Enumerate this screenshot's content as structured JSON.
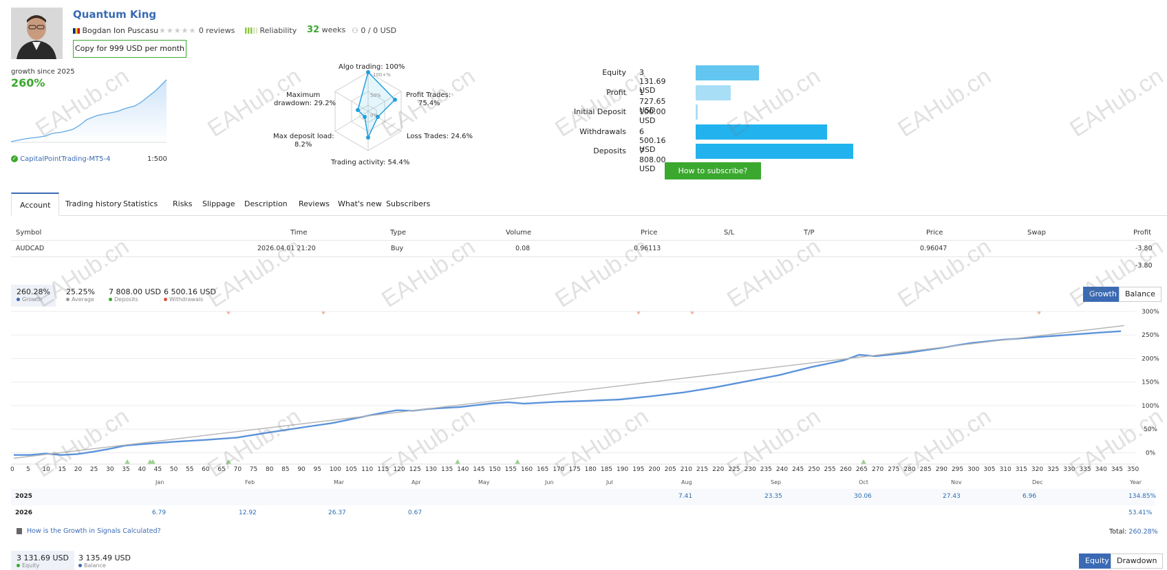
{
  "header": {
    "title": "Quantum King",
    "author": "Bogdan Ion Puscasu",
    "reviews": "0 reviews",
    "reliability": "Reliability",
    "weeks_num": "32",
    "weeks_label": "weeks",
    "subscribers": "0 / 0 USD",
    "copy_button": "Copy for 999 USD per month"
  },
  "growth": {
    "label": "growth since 2025",
    "value": "260%",
    "broker": "CapitalPointTrading-MT5-4",
    "leverage": "1:500"
  },
  "radar": {
    "algo": "Algo trading: 100%",
    "profit_trades_1": "Profit Trades:",
    "profit_trades_2": "75.4%",
    "loss_trades": "Loss Trades: 24.6%",
    "activity": "Trading activity: 54.4%",
    "max_deposit_1": "Max deposit load:",
    "max_deposit_2": "8.2%",
    "drawdown_1": "Maximum",
    "drawdown_2": "drawdown: 29.2%",
    "ring_100": "100+%",
    "ring_50": "50%",
    "ring_0": "0%"
  },
  "bars": [
    {
      "label": "Equity",
      "value": "3 131.69 USD",
      "amount": 3131.69,
      "color": "#62c6f0"
    },
    {
      "label": "Profit",
      "value": "1 727.65 USD",
      "amount": 1727.65,
      "color": "#a8def6"
    },
    {
      "label": "Initial Deposit",
      "value": "100.00 USD",
      "amount": 100.0,
      "color": "#a8def6"
    },
    {
      "label": "Withdrawals",
      "value": "6 500.16 USD",
      "amount": 6500.16,
      "color": "#22b3ee"
    },
    {
      "label": "Deposits",
      "value": "7 808.00 USD",
      "amount": 7808.0,
      "color": "#22b3ee"
    }
  ],
  "subscribe_button": "How to subscribe?",
  "tabs": [
    "Account",
    "Trading history",
    "Statistics",
    "Risks",
    "Slippage",
    "Description",
    "Reviews",
    "What's new",
    "Subscribers"
  ],
  "positions": {
    "headers": {
      "symbol": "Symbol",
      "time": "Time",
      "type": "Type",
      "volume": "Volume",
      "price": "Price",
      "sl": "S/L",
      "tp": "T/P",
      "price2": "Price",
      "swap": "Swap",
      "profit": "Profit"
    },
    "row": {
      "symbol": "AUDCAD",
      "time": "2026.04.01 21:20",
      "type": "Buy",
      "volume": "0.08",
      "price": "0.96113",
      "price2": "0.96047",
      "profit": "-3.80"
    },
    "total": "-3.80"
  },
  "stats": [
    {
      "value": "260.28%",
      "label": "Growth",
      "color": "#3a6ab4"
    },
    {
      "value": "25.25%",
      "label": "Average",
      "color": "#9a9a9a"
    },
    {
      "value": "7 808.00 USD",
      "label": "Deposits",
      "color": "#3aa82e"
    },
    {
      "value": "6 500.16 USD",
      "label": "Withdrawals",
      "color": "#e0503a"
    }
  ],
  "chart_toggle": {
    "growth": "Growth",
    "balance": "Balance"
  },
  "chart_data": {
    "type": "line",
    "title": "",
    "x_ticks": [
      "0",
      "5",
      "10",
      "15",
      "20",
      "25",
      "30",
      "35",
      "40",
      "45",
      "50",
      "55",
      "60",
      "65",
      "70",
      "75",
      "80",
      "85",
      "90",
      "95",
      "100",
      "105",
      "110",
      "115",
      "120",
      "125",
      "130",
      "135",
      "140",
      "145",
      "150",
      "155",
      "160",
      "165",
      "170",
      "175",
      "180",
      "185",
      "190",
      "195",
      "200",
      "205",
      "210",
      "215",
      "220",
      "225",
      "230",
      "235",
      "240",
      "245",
      "250",
      "255",
      "260",
      "265",
      "270",
      "275",
      "280",
      "285",
      "290",
      "295",
      "300",
      "305",
      "310",
      "315",
      "320",
      "325",
      "330",
      "335",
      "340",
      "345",
      "350"
    ],
    "y_ticks": [
      "300%",
      "250%",
      "200%",
      "150%",
      "100%",
      "50%",
      "0%"
    ],
    "xlim": [
      0,
      350
    ],
    "ylim": [
      -20,
      300
    ],
    "series": [
      {
        "name": "Growth",
        "color": "#5b93db",
        "x": [
          0,
          5,
          10,
          15,
          20,
          25,
          30,
          35,
          40,
          50,
          60,
          70,
          80,
          90,
          100,
          110,
          115,
          120,
          125,
          130,
          140,
          150,
          155,
          160,
          170,
          180,
          190,
          200,
          210,
          220,
          230,
          240,
          250,
          260,
          265,
          270,
          280,
          290,
          300,
          310,
          320,
          330,
          340,
          347
        ],
        "values": [
          -5,
          -5,
          -2,
          -5,
          -3,
          2,
          8,
          15,
          18,
          23,
          27,
          32,
          43,
          53,
          63,
          77,
          84,
          90,
          89,
          93,
          97,
          105,
          107,
          104,
          108,
          110,
          113,
          120,
          128,
          139,
          152,
          165,
          182,
          196,
          208,
          205,
          212,
          222,
          233,
          240,
          245,
          250,
          255,
          258
        ]
      },
      {
        "name": "Trend",
        "color": "#b4b4b4",
        "x": [
          0,
          348
        ],
        "values": [
          -12,
          270
        ]
      }
    ],
    "months": [
      "Jan",
      "Feb",
      "Mar",
      "Apr",
      "May",
      "Jun",
      "Jul",
      "Aug",
      "Sep",
      "Oct",
      "Nov",
      "Dec",
      "Year"
    ]
  },
  "yearly": [
    {
      "year": "2025",
      "Aug": "7.41",
      "Sep": "23.35",
      "Oct": "30.06",
      "Nov": "27.43",
      "Dec": "6.96",
      "Year": "134.85%"
    },
    {
      "year": "2026",
      "Jan": "6.79",
      "Feb": "12.92",
      "Mar": "26.37",
      "Apr": "0.67",
      "Year": "53.41%"
    }
  ],
  "growth_link": "How is the Growth in Signals Calculated?",
  "total": {
    "label": "Total:",
    "value": "260.28%"
  },
  "bottom_stats": [
    {
      "value": "3 131.69 USD",
      "label": "Equity",
      "color": "#3aa82e"
    },
    {
      "value": "3 135.49 USD",
      "label": "Balance",
      "color": "#3a6ab4"
    }
  ],
  "bottom_toggle": {
    "equity": "Equity",
    "drawdown": "Drawdown"
  },
  "watermark": "EAHub.cn"
}
